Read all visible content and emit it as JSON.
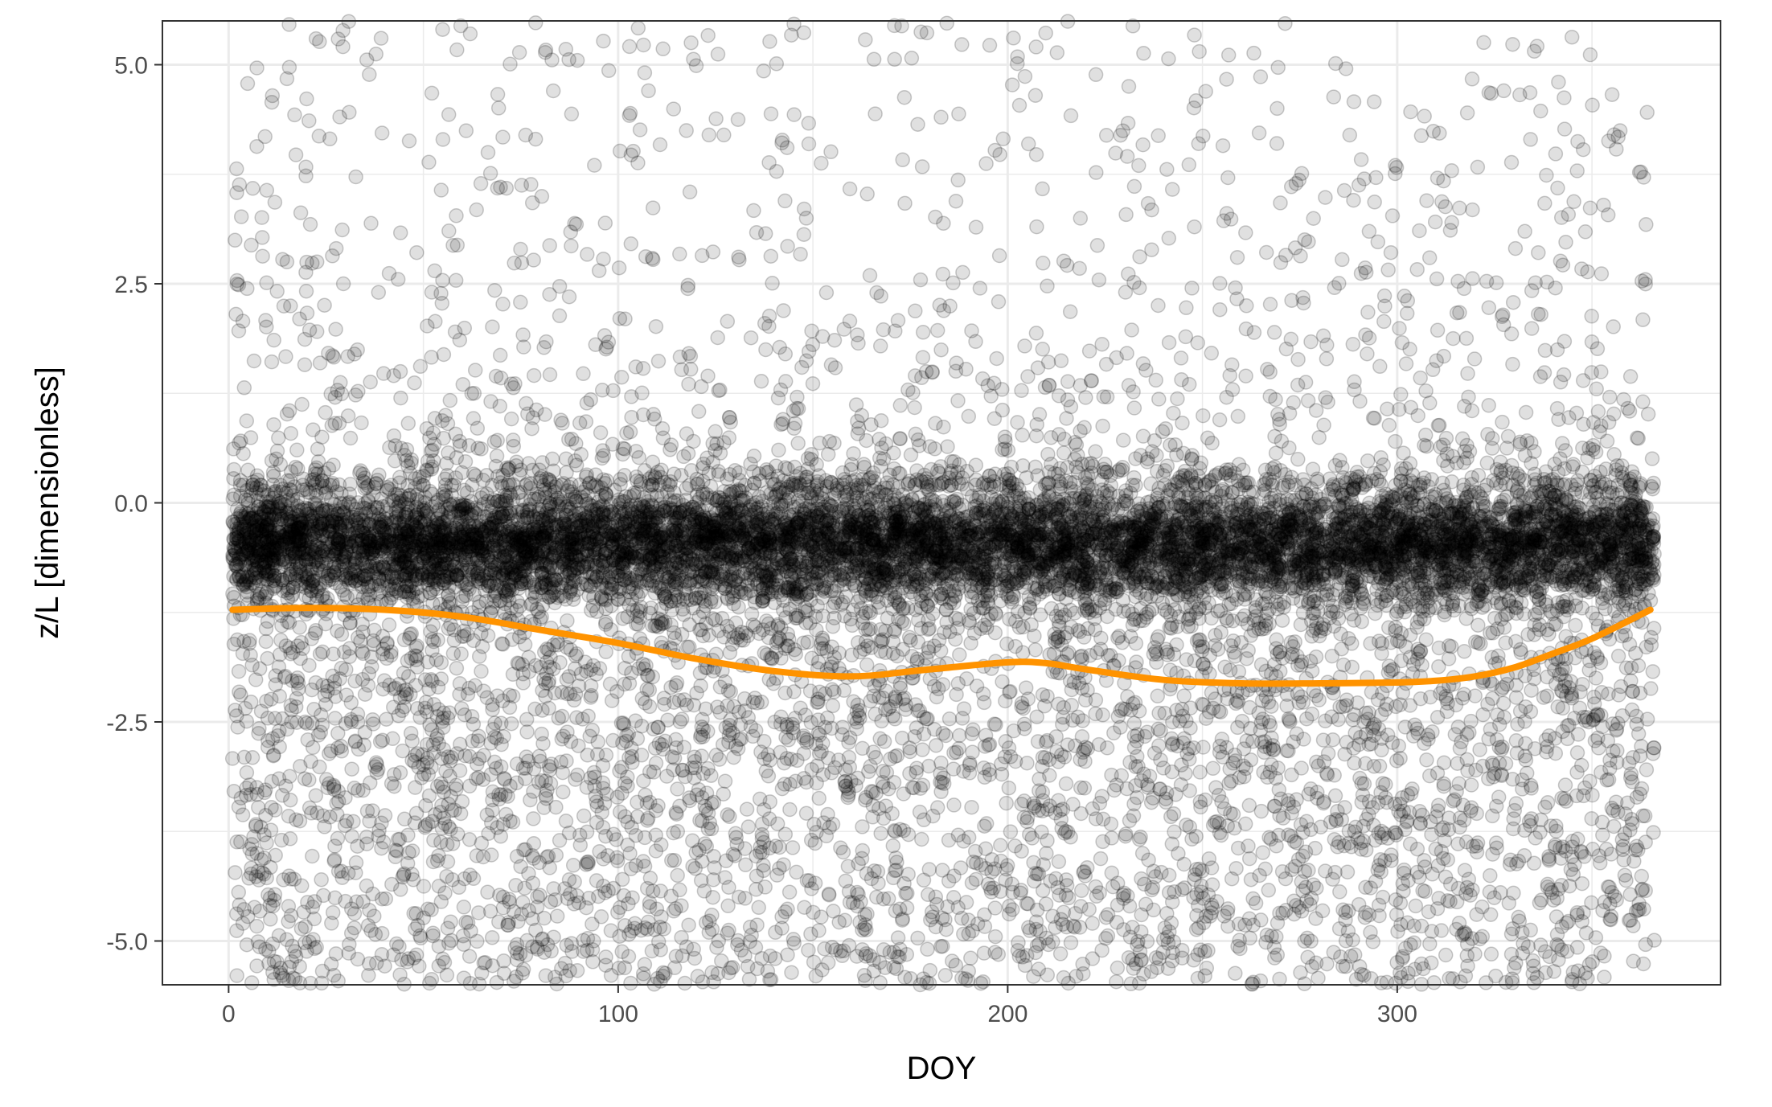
{
  "chart_data": {
    "type": "scatter",
    "title": "",
    "xlabel": "DOY",
    "ylabel": "z/L [dimensionless]",
    "xlim": [
      -17,
      383
    ],
    "ylim": [
      -5.5,
      5.5
    ],
    "x_ticks": [
      0,
      100,
      200,
      300
    ],
    "x_tick_labels": [
      "0",
      "100",
      "200",
      "300"
    ],
    "y_ticks": [
      -5.0,
      -2.5,
      0.0,
      2.5,
      5.0
    ],
    "y_tick_labels": [
      "-5.0",
      "-2.5",
      "0.0",
      "2.5",
      "5.0"
    ],
    "grid": true,
    "legend": "none",
    "colors": {
      "points": "#000000",
      "smooth_line": "#FF9300",
      "grid": "#EBEBEB",
      "panel_border": "#333333",
      "background": "#FFFFFF"
    },
    "series": [
      {
        "type": "scatter",
        "x_range": [
          1,
          366
        ],
        "density_description": "dense band between about -1.2 and 0.3; sparse scatter above up to 5.5; moderately dense scatter below down to -5.5",
        "point_alpha": 0.12
      },
      {
        "type": "line",
        "x": [
          1,
          20,
          40,
          60,
          80,
          100,
          120,
          140,
          160,
          180,
          200,
          210,
          220,
          240,
          260,
          280,
          300,
          310,
          320,
          330,
          340,
          350,
          365
        ],
        "y": [
          -1.22,
          -1.2,
          -1.22,
          -1.3,
          -1.45,
          -1.6,
          -1.78,
          -1.92,
          -1.98,
          -1.9,
          -1.82,
          -1.83,
          -1.9,
          -2.02,
          -2.06,
          -2.06,
          -2.05,
          -2.03,
          -1.98,
          -1.88,
          -1.72,
          -1.55,
          -1.22
        ]
      }
    ]
  }
}
